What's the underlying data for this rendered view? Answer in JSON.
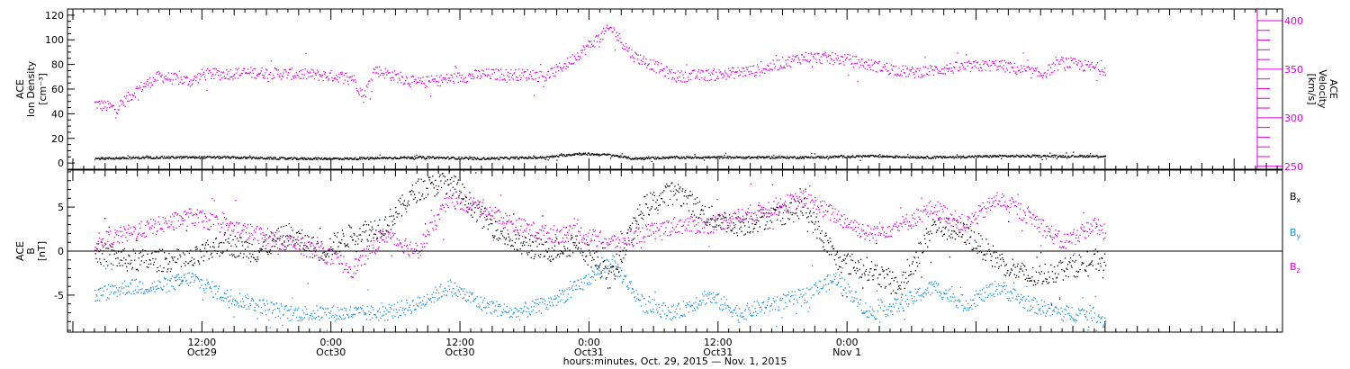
{
  "chart_data": [
    {
      "panel": "top",
      "type": "scatter",
      "ylabel": [
        "ACE",
        "Ion Density",
        "[cm⁻³]"
      ],
      "ylim": [
        -5,
        125
      ],
      "yticks": [
        "0",
        "20",
        "40",
        "60",
        "80",
        "100",
        "120"
      ],
      "ytick_values": [
        0,
        20,
        40,
        60,
        80,
        100,
        120
      ],
      "y2label": [
        "ACE",
        "Velocity",
        "[km/s]"
      ],
      "y2lim": [
        247,
        412
      ],
      "y2ticks": [
        "250",
        "300",
        "350",
        "400"
      ],
      "y2tick_values": [
        250,
        300,
        350,
        400
      ],
      "colors": {
        "density": "#000000",
        "velocity": "#dd00dd"
      },
      "series": [
        {
          "axis": "left",
          "color": "#000000",
          "x_hours": [
            0,
            6,
            12,
            18,
            24,
            30,
            36,
            42,
            45,
            48,
            50,
            54,
            60,
            66,
            72,
            78,
            84,
            90,
            94
          ],
          "values": [
            4,
            5,
            5,
            4,
            4,
            5,
            4,
            5,
            8,
            7,
            4,
            5,
            5,
            5,
            6,
            5,
            6,
            6,
            6
          ]
        },
        {
          "axis": "right",
          "color": "#dd00dd",
          "x_hours": [
            0,
            2,
            4,
            6,
            9,
            10,
            15,
            20,
            24,
            25,
            26,
            30,
            36,
            40,
            42,
            44,
            46,
            48,
            50,
            54,
            58,
            62,
            64,
            66,
            68,
            70,
            72,
            76,
            80,
            84,
            88,
            90,
            94
          ],
          "values": [
            315,
            310,
            330,
            343,
            338,
            345,
            347,
            345,
            342,
            322,
            350,
            336,
            345,
            345,
            343,
            357,
            375,
            393,
            365,
            343,
            345,
            350,
            357,
            363,
            362,
            360,
            355,
            347,
            352,
            355,
            345,
            358,
            350
          ]
        }
      ]
    },
    {
      "panel": "bottom",
      "type": "scatter",
      "ylabel": [
        "ACE",
        "B",
        "[nT]"
      ],
      "ylim": [
        -9.2,
        9.2
      ],
      "yticks": [
        "0",
        "5",
        "-5"
      ],
      "ytick_values": [
        0,
        5,
        -5
      ],
      "zero_line": true,
      "legend": [
        {
          "text": "B",
          "sub": "x",
          "color": "#000000"
        },
        {
          "text": "B",
          "sub": "y",
          "color": "#1a8fe0"
        },
        {
          "text": "B",
          "sub": "z",
          "color": "#dd00dd"
        }
      ],
      "series": [
        {
          "component": "Bx",
          "color": "#000000",
          "x_hours": [
            0,
            3,
            6,
            9,
            12,
            15,
            18,
            21,
            24,
            27,
            30,
            33,
            36,
            39,
            42,
            45,
            48,
            51,
            54,
            57,
            60,
            63,
            66,
            69,
            72,
            75,
            78,
            81,
            84,
            87,
            90,
            93,
            94
          ],
          "values": [
            0,
            -1,
            -1,
            -1,
            1,
            0,
            2,
            0,
            2,
            3,
            7,
            8,
            4,
            1,
            0,
            1,
            -3,
            5,
            7,
            4,
            3,
            4,
            5,
            -1,
            -2,
            -4,
            3,
            2,
            -1,
            -3,
            -2,
            -1,
            -1
          ]
        },
        {
          "component": "By",
          "color": "#1a8fe0",
          "x_hours": [
            0,
            3,
            6,
            9,
            12,
            15,
            18,
            21,
            24,
            27,
            30,
            33,
            36,
            39,
            42,
            45,
            48,
            51,
            54,
            57,
            60,
            63,
            66,
            69,
            72,
            75,
            78,
            81,
            84,
            87,
            90,
            93,
            94
          ],
          "values": [
            -5,
            -4,
            -4,
            -3,
            -5,
            -6,
            -7,
            -7,
            -7,
            -7,
            -6,
            -4,
            -6,
            -7,
            -6,
            -4,
            -1,
            -6,
            -7,
            -5,
            -7,
            -6,
            -5,
            -3,
            -7,
            -6,
            -4,
            -6,
            -4,
            -6,
            -7,
            -7,
            -8
          ]
        },
        {
          "component": "Bz",
          "color": "#dd00dd",
          "x_hours": [
            0,
            3,
            6,
            9,
            12,
            15,
            18,
            21,
            24,
            27,
            30,
            33,
            36,
            39,
            42,
            45,
            48,
            51,
            54,
            57,
            60,
            63,
            66,
            69,
            72,
            75,
            78,
            81,
            84,
            87,
            90,
            93,
            94
          ],
          "values": [
            1,
            2,
            3,
            4,
            3,
            2,
            1,
            0,
            -2,
            2,
            0,
            6,
            5,
            3,
            2,
            2,
            1,
            2,
            3,
            3,
            4,
            5,
            6,
            4,
            2,
            3,
            5,
            3,
            6,
            4,
            1,
            3,
            2
          ]
        }
      ]
    }
  ],
  "x_axis": {
    "xlim_hours": [
      -2.5,
      110.5
    ],
    "major_ticks": [
      {
        "hour": 10,
        "time": "12:00",
        "date": "Oct29"
      },
      {
        "hour": 22,
        "time": "0:00",
        "date": "Oct30"
      },
      {
        "hour": 34,
        "time": "12:00",
        "date": "Oct30"
      },
      {
        "hour": 46,
        "time": "0:00",
        "date": "Oct31"
      },
      {
        "hour": 58,
        "time": "12:00",
        "date": "Oct31"
      },
      {
        "hour": 70,
        "time": "0:00",
        "date": "Nov 1"
      }
    ],
    "xlabel": "hours:minutes, Oct. 29, 2015 — Nov. 1, 2015"
  }
}
